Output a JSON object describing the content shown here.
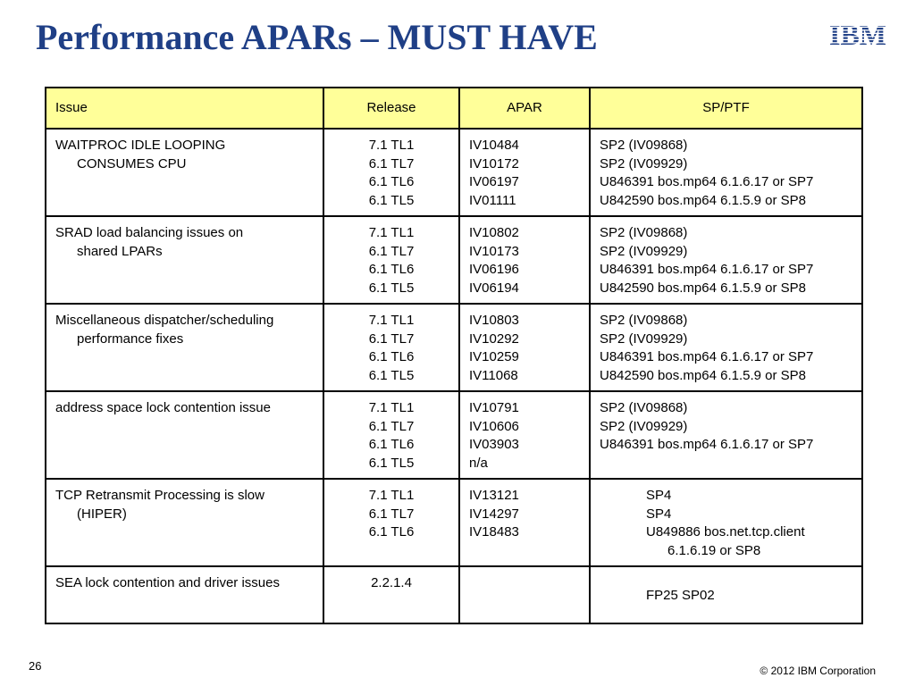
{
  "slide": {
    "title": "Performance APARs – MUST HAVE",
    "logo_text": "IBM",
    "number": "26",
    "copyright": "© 2012 IBM Corporation"
  },
  "colors": {
    "title": "#1f3f86",
    "header_bg": "#ffff99",
    "logo": "#1f3f86"
  },
  "table": {
    "headers": {
      "issue": "Issue",
      "release": "Release",
      "apar": "APAR",
      "ptf": "SP/PTF"
    },
    "rows": [
      {
        "issue": [
          "WAITPROC IDLE LOOPING",
          "CONSUMES CPU"
        ],
        "release": [
          "7.1 TL1",
          "6.1 TL7",
          "6.1 TL6",
          "6.1 TL5"
        ],
        "apar": [
          "IV10484",
          "IV10172",
          "IV06197",
          "IV01111"
        ],
        "ptf": [
          "SP2 (IV09868)",
          "SP2 (IV09929)",
          "U846391 bos.mp64 6.1.6.17 or SP7",
          "U842590 bos.mp64 6.1.5.9 or SP8"
        ]
      },
      {
        "issue": [
          "SRAD load balancing issues on",
          "shared LPARs"
        ],
        "release": [
          "7.1 TL1",
          "6.1 TL7",
          "6.1 TL6",
          "6.1 TL5"
        ],
        "apar": [
          "IV10802",
          "IV10173",
          "IV06196",
          "IV06194"
        ],
        "ptf": [
          "SP2 (IV09868)",
          "SP2 (IV09929)",
          "U846391 bos.mp64 6.1.6.17 or SP7",
          "U842590 bos.mp64 6.1.5.9 or SP8"
        ]
      },
      {
        "issue": [
          "Miscellaneous dispatcher/scheduling",
          "performance fixes"
        ],
        "release": [
          "7.1 TL1",
          "6.1 TL7",
          "6.1 TL6",
          "6.1 TL5"
        ],
        "apar": [
          "IV10803",
          "IV10292",
          "IV10259",
          "IV11068"
        ],
        "ptf": [
          "SP2 (IV09868)",
          "SP2 (IV09929)",
          "U846391 bos.mp64 6.1.6.17 or SP7",
          "U842590 bos.mp64 6.1.5.9 or SP8"
        ]
      },
      {
        "issue": [
          "address space lock contention issue"
        ],
        "release": [
          "7.1 TL1",
          "6.1 TL7",
          "6.1 TL6",
          "6.1 TL5"
        ],
        "apar": [
          "IV10791",
          "IV10606",
          "IV03903",
          "n/a"
        ],
        "ptf": [
          "SP2 (IV09868)",
          "SP2 (IV09929)",
          "U846391 bos.mp64 6.1.6.17 or SP7"
        ]
      },
      {
        "issue": [
          "TCP Retransmit Processing is slow",
          "(HIPER)"
        ],
        "release": [
          "7.1 TL1",
          "6.1 TL7",
          "6.1 TL6"
        ],
        "apar": [
          "IV13121",
          "IV14297",
          "IV18483"
        ],
        "ptf": [
          "SP4",
          "SP4",
          "U849886 bos.net.tcp.client",
          "6.1.6.19 or SP8"
        ]
      },
      {
        "issue": [
          "SEA lock contention and driver issues"
        ],
        "release": [
          "2.2.1.4"
        ],
        "apar": [],
        "ptf": [
          "FP25 SP02"
        ]
      }
    ]
  }
}
